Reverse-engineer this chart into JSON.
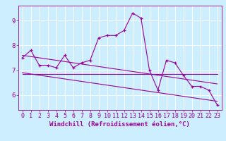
{
  "xlabel": "Windchill (Refroidissement éolien,°C)",
  "ylabel": "",
  "bg_color": "#cceeff",
  "grid_color": "#ffffff",
  "line_color": "#990099",
  "x": [
    0,
    1,
    2,
    3,
    4,
    5,
    6,
    7,
    8,
    9,
    10,
    11,
    12,
    13,
    14,
    15,
    16,
    17,
    18,
    19,
    20,
    21,
    22,
    23
  ],
  "y_main": [
    7.5,
    7.8,
    7.2,
    7.2,
    7.1,
    7.6,
    7.1,
    7.3,
    7.4,
    8.3,
    8.4,
    8.4,
    8.6,
    9.3,
    9.1,
    7.0,
    6.2,
    7.4,
    7.3,
    6.8,
    6.35,
    6.35,
    6.2,
    5.6
  ],
  "y_mean": [
    6.85,
    6.85,
    6.85,
    6.85,
    6.85,
    6.85,
    6.85,
    6.85,
    6.85,
    6.85,
    6.85,
    6.85,
    6.85,
    6.85,
    6.85,
    6.85,
    6.85,
    6.85,
    6.85,
    6.85,
    6.85,
    6.85,
    6.85,
    6.85
  ],
  "y_trend1": [
    7.6,
    7.55,
    7.5,
    7.45,
    7.4,
    7.35,
    7.3,
    7.25,
    7.2,
    7.15,
    7.1,
    7.05,
    7.0,
    6.95,
    6.9,
    6.85,
    6.8,
    6.75,
    6.7,
    6.65,
    6.6,
    6.55,
    6.5,
    6.45
  ],
  "y_trend2": [
    6.9,
    6.85,
    6.8,
    6.75,
    6.7,
    6.65,
    6.6,
    6.55,
    6.5,
    6.45,
    6.4,
    6.35,
    6.3,
    6.25,
    6.2,
    6.15,
    6.1,
    6.05,
    6.0,
    5.95,
    5.9,
    5.85,
    5.8,
    5.75
  ],
  "xlim": [
    -0.5,
    23.5
  ],
  "ylim": [
    5.4,
    9.6
  ],
  "yticks": [
    6,
    7,
    8,
    9
  ],
  "xticks": [
    0,
    1,
    2,
    3,
    4,
    5,
    6,
    7,
    8,
    9,
    10,
    11,
    12,
    13,
    14,
    15,
    16,
    17,
    18,
    19,
    20,
    21,
    22,
    23
  ],
  "tick_fontsize": 6,
  "label_fontsize": 6.5
}
